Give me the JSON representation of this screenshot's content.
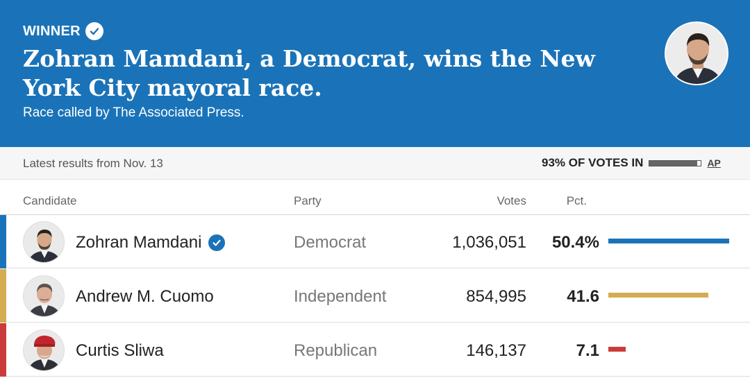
{
  "banner": {
    "winner_label": "WINNER",
    "headline": "Zohran Mamdani, a Democrat, wins the New York City mayoral race.",
    "called_by": "Race called by The Associated Press.",
    "color": "#1a73b8"
  },
  "status": {
    "latest": "Latest results from Nov. 13",
    "votes_in_label": "93% OF VOTES IN",
    "votes_in_fraction": 0.93,
    "ap_link": "AP"
  },
  "table": {
    "headers": {
      "candidate": "Candidate",
      "party": "Party",
      "votes": "Votes",
      "pct": "Pct."
    },
    "rows": [
      {
        "name": "Zohran Mamdani",
        "winner": true,
        "party": "Democrat",
        "votes": "1,036,051",
        "pct": "50.4%",
        "pct_value": 50.4,
        "color": "#1a73b8"
      },
      {
        "name": "Andrew M. Cuomo",
        "winner": false,
        "party": "Independent",
        "votes": "854,995",
        "pct": "41.6",
        "pct_value": 41.6,
        "color": "#d4ad52"
      },
      {
        "name": "Curtis Sliwa",
        "winner": false,
        "party": "Republican",
        "votes": "146,137",
        "pct": "7.1",
        "pct_value": 7.1,
        "color": "#cc3b3b"
      }
    ]
  },
  "icons": {
    "winner_check": "check-circle-icon",
    "name_check": "verified-check-icon"
  }
}
